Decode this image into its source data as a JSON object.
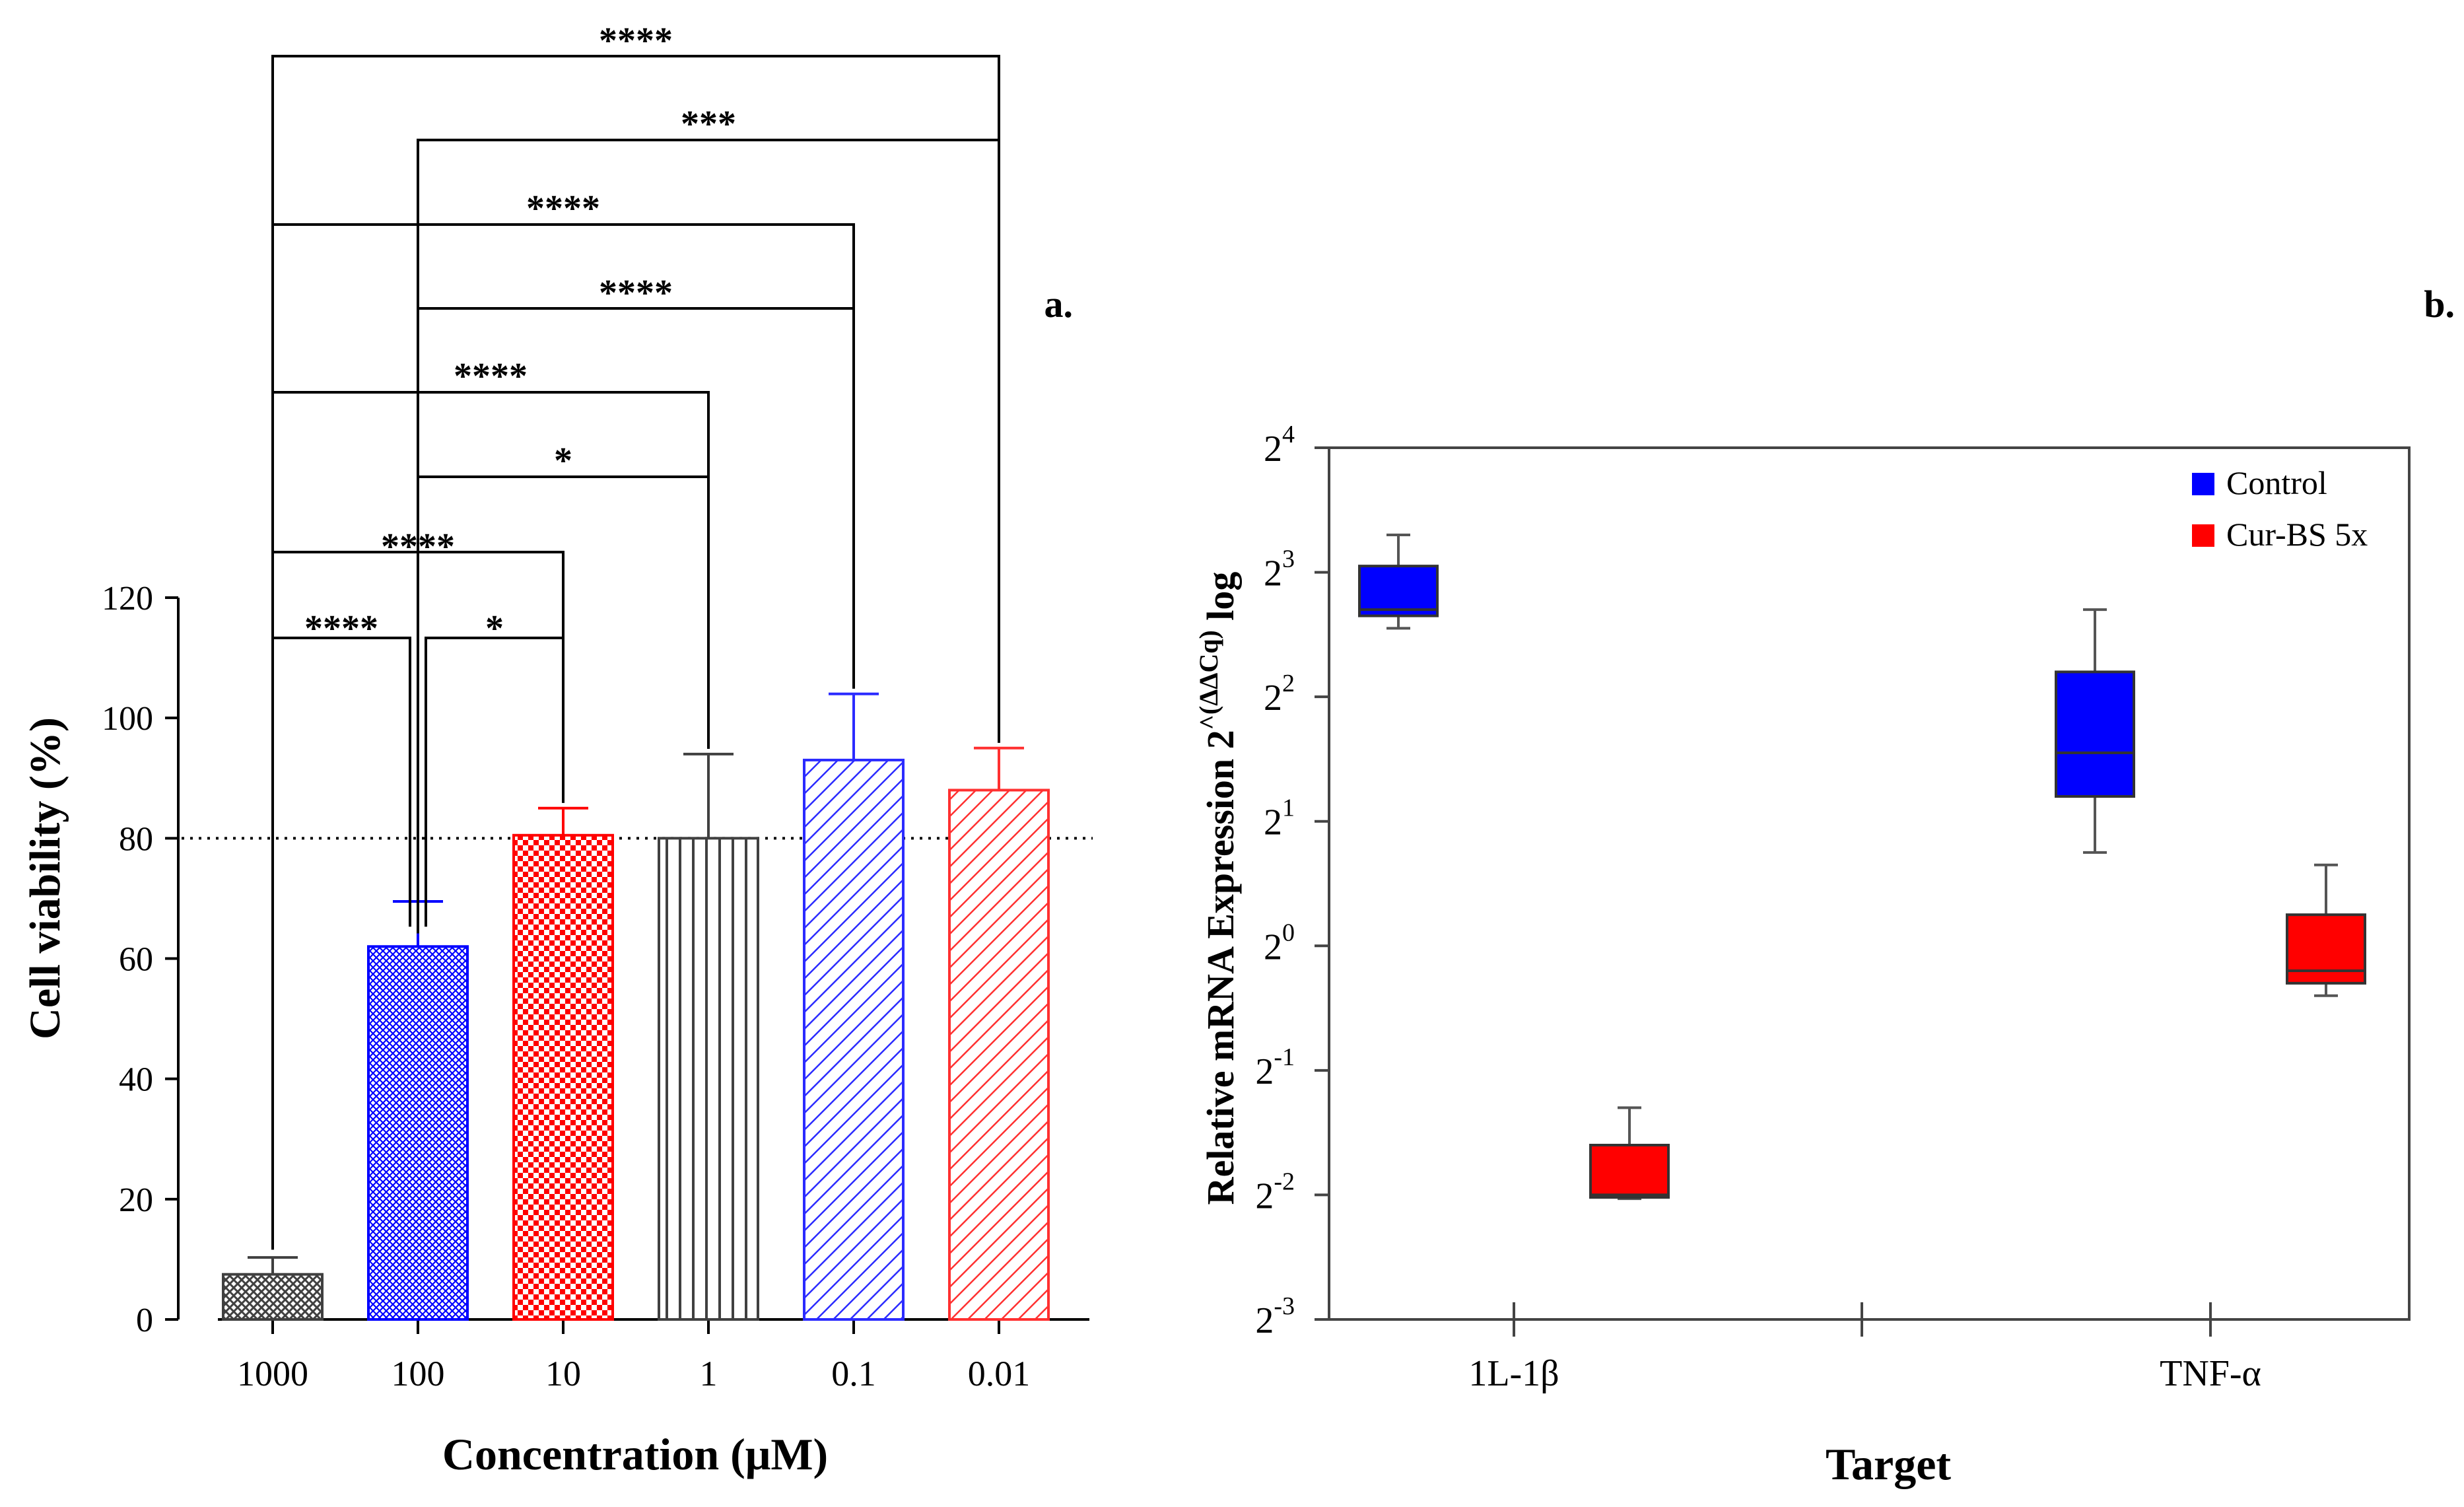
{
  "panel_a": {
    "label": "a.",
    "ylabel": "Cell viability (%)",
    "xlabel": "Concentration (μM)"
  },
  "panel_b": {
    "label": "b.",
    "ylabel": "Relative mRNA Expression 2",
    "ylabel_sup": "^(ΔΔCq)",
    "ylabel_suffix": " log",
    "xlabel": "Target"
  },
  "chart_data": [
    {
      "type": "bar",
      "title": "",
      "xlabel": "Concentration (μM)",
      "ylabel": "Cell viability (%)",
      "ylim": [
        0,
        120
      ],
      "yticks": [
        0,
        20,
        40,
        60,
        80,
        100,
        120
      ],
      "reference_line": 80,
      "categories": [
        "1000",
        "100",
        "10",
        "1",
        "0.1",
        "0.01"
      ],
      "values": [
        7.5,
        62,
        80.5,
        80,
        93,
        88
      ],
      "errors": [
        2.8,
        7.5,
        4.5,
        14,
        11,
        7
      ],
      "colors": [
        "#404040",
        "#0000ff",
        "#ff0000",
        "#404040",
        "#2b2bff",
        "#ff3030"
      ],
      "patterns": [
        "crosshatch",
        "fine-crosshatch",
        "checker",
        "vertical",
        "diagonal",
        "diagonal"
      ],
      "comparisons": [
        {
          "from": 0,
          "to": 5,
          "label": "****"
        },
        {
          "from": 1,
          "to": 5,
          "label": "***"
        },
        {
          "from": 0,
          "to": 4,
          "label": "****"
        },
        {
          "from": 1,
          "to": 4,
          "label": "****"
        },
        {
          "from": 0,
          "to": 3,
          "label": "****"
        },
        {
          "from": 1,
          "to": 3,
          "label": "*"
        },
        {
          "from": 0,
          "to": 2,
          "label": "****"
        },
        {
          "from": 0,
          "to": 1,
          "label": "****"
        },
        {
          "from": 1,
          "to": 2,
          "label": "*"
        }
      ]
    },
    {
      "type": "box",
      "xlabel": "Target",
      "ylabel": "Relative mRNA Expression 2^(ΔΔCq) log",
      "yscale": "log2",
      "ylim_exponent": [
        -3,
        4
      ],
      "ytick_exponents": [
        4,
        3,
        2,
        1,
        0,
        -1,
        -2,
        -3
      ],
      "ytick_base": "2",
      "categories": [
        "1L-1β",
        "TNF-α"
      ],
      "legend": {
        "position": "top-right",
        "entries": [
          "Control",
          "Cur-BS 5x"
        ]
      },
      "series": [
        {
          "name": "Control",
          "color": "#0000ff",
          "boxes_exponent": [
            {
              "min": 2.55,
              "q1": 2.65,
              "median": 2.7,
              "q3": 3.05,
              "max": 3.3
            },
            {
              "min": 0.75,
              "q1": 1.2,
              "median": 1.55,
              "q3": 2.2,
              "max": 2.7
            }
          ]
        },
        {
          "name": "Cur-BS 5x",
          "color": "#ff0000",
          "boxes_exponent": [
            {
              "min": -2.03,
              "q1": -2.02,
              "median": -2.0,
              "q3": -1.6,
              "max": -1.3
            },
            {
              "min": -0.4,
              "q1": -0.3,
              "median": -0.2,
              "q3": 0.25,
              "max": 0.65
            }
          ]
        }
      ]
    }
  ]
}
